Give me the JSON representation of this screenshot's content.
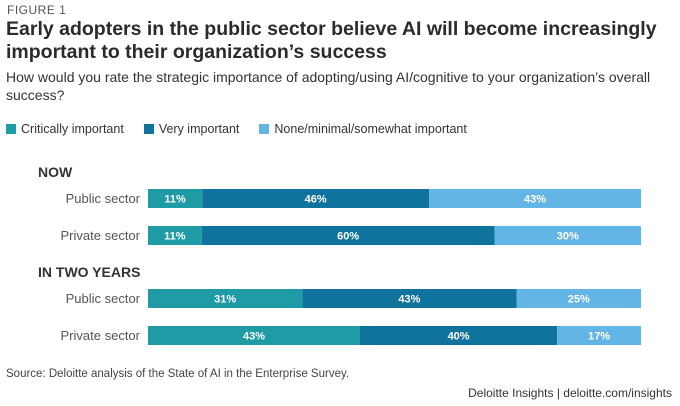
{
  "figure_label": "FIGURE 1",
  "title": "Early adopters in the public sector believe AI will become increasingly important to their organization’s success",
  "subtitle": "How would you rate the strategic importance of adopting/using AI/cognitive to your organization’s overall success?",
  "colors": {
    "critically": "#1f9ba6",
    "very": "#10739e",
    "none": "#62b5e5"
  },
  "chart_data": {
    "type": "bar",
    "orientation": "horizontal-stacked-100",
    "legend_placement": "top-left",
    "grid": false,
    "legend": [
      {
        "name": "Critically important",
        "color": "#1f9ba6"
      },
      {
        "name": "Very important",
        "color": "#10739e"
      },
      {
        "name": "None/minimal/somewhat important",
        "color": "#62b5e5"
      }
    ],
    "groups": [
      {
        "label": "NOW",
        "rows": [
          {
            "category": "Public sector",
            "values": [
              11,
              46,
              43
            ],
            "labels": [
              "11%",
              "46%",
              "43%"
            ]
          },
          {
            "category": "Private sector",
            "values": [
              11,
              60,
              30
            ],
            "labels": [
              "11%",
              "60%",
              "30%"
            ]
          }
        ]
      },
      {
        "label": "IN TWO YEARS",
        "rows": [
          {
            "category": "Public sector",
            "values": [
              31,
              43,
              25
            ],
            "labels": [
              "31%",
              "43%",
              "25%"
            ]
          },
          {
            "category": "Private sector",
            "values": [
              43,
              40,
              17
            ],
            "labels": [
              "43%",
              "40%",
              "17%"
            ]
          }
        ]
      }
    ]
  },
  "source": "Source: Deloitte analysis of the State of AI in the Enterprise Survey.",
  "footer": "Deloitte Insights | deloitte.com/insights"
}
